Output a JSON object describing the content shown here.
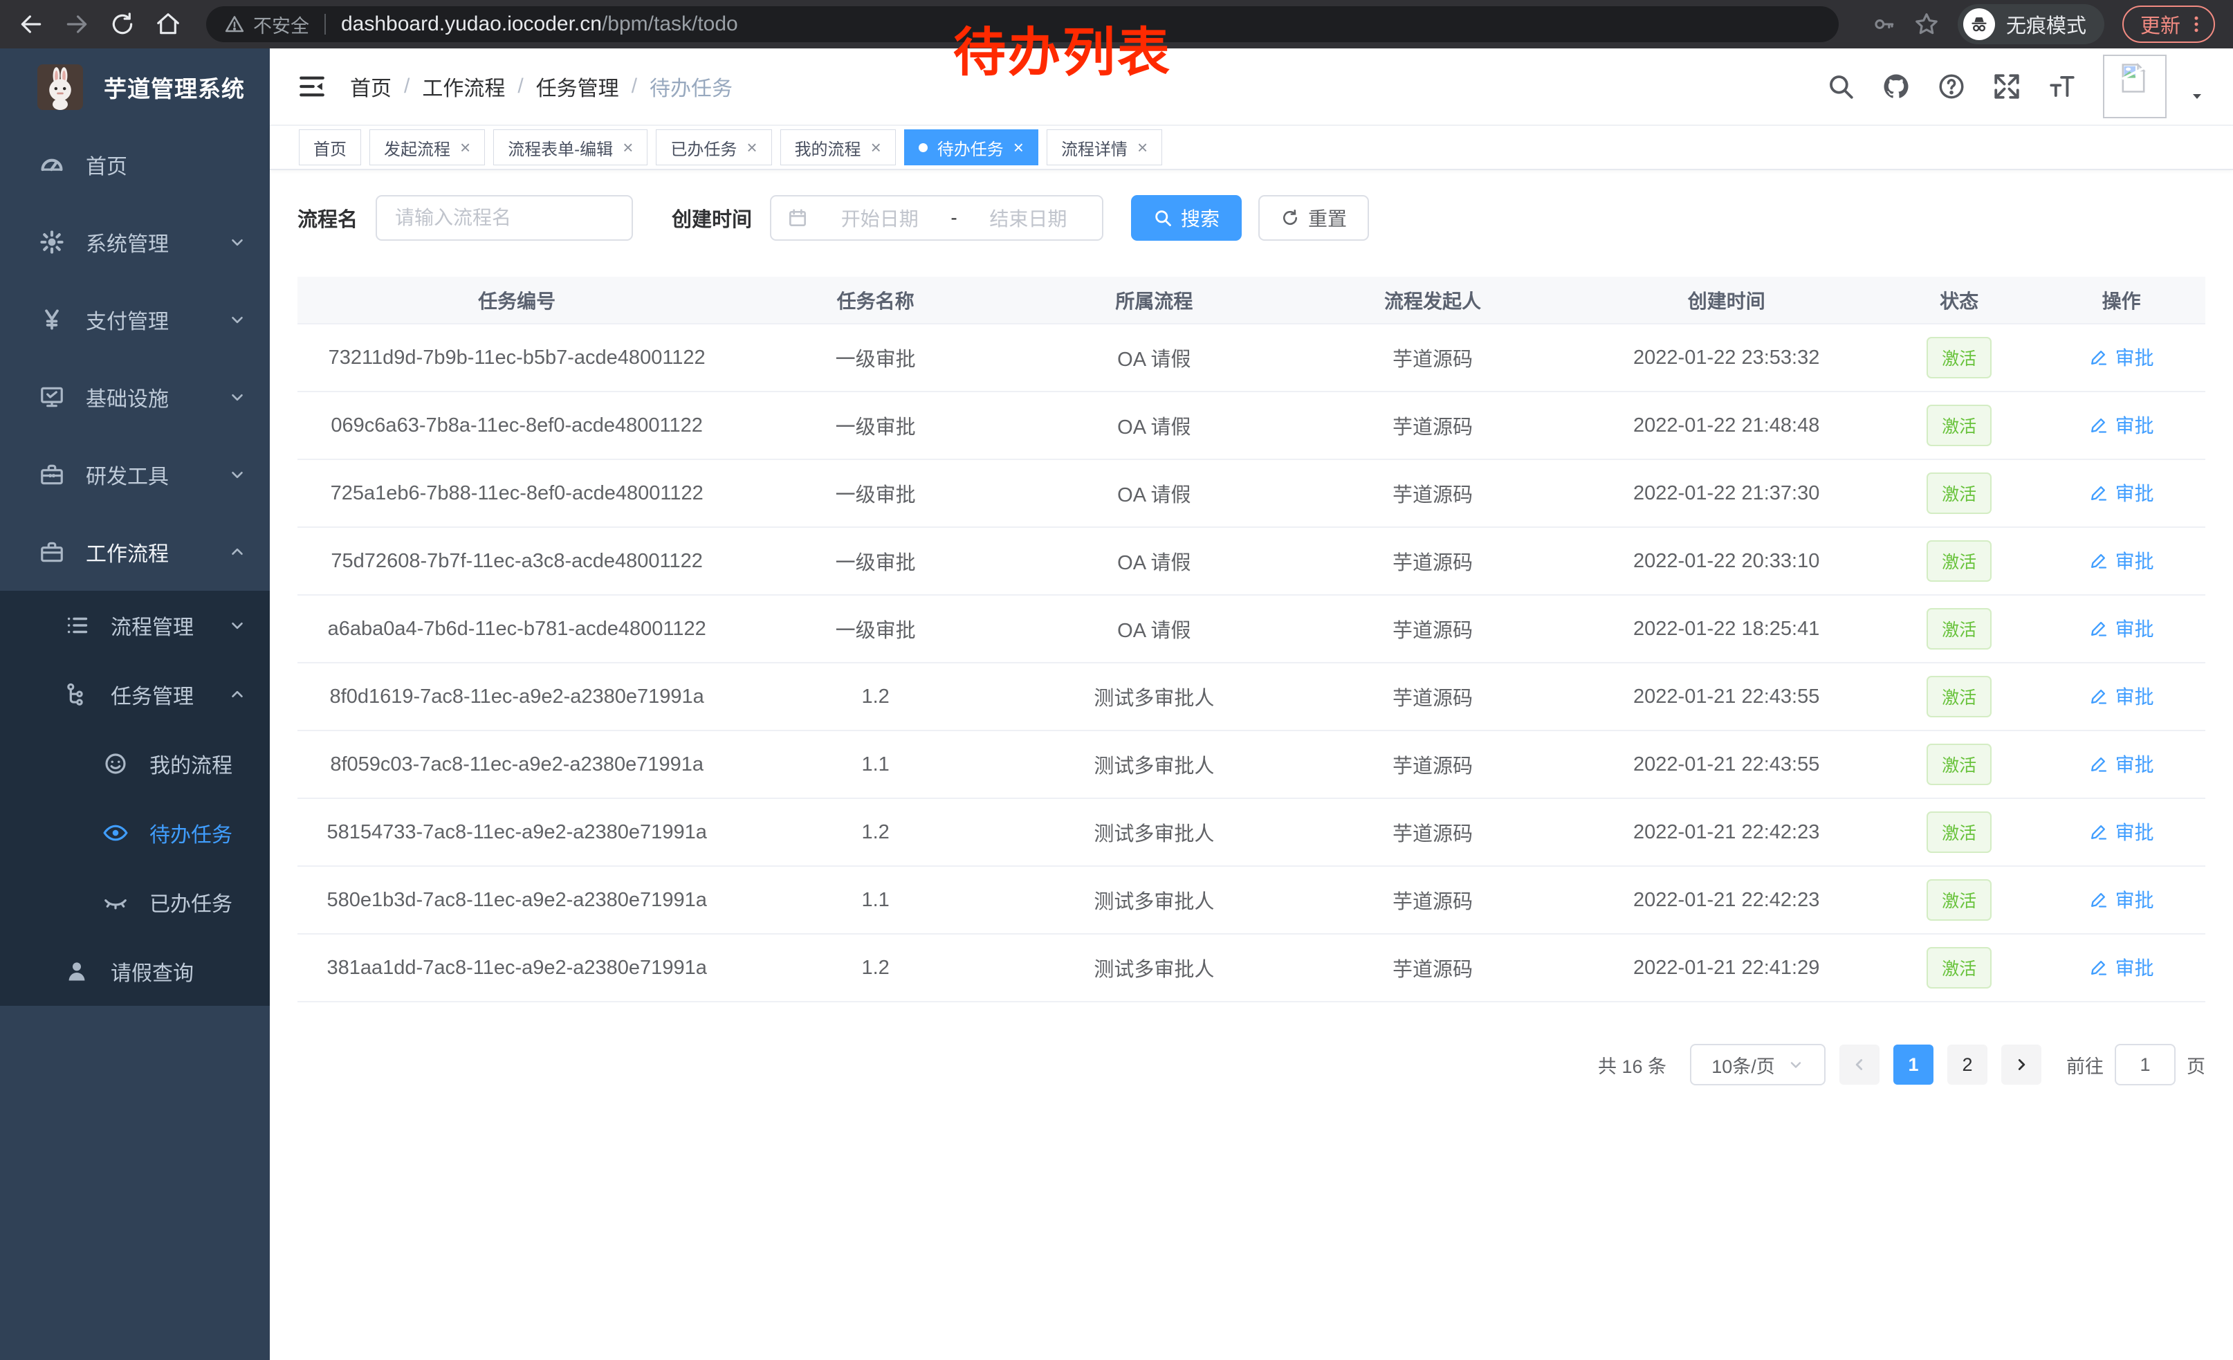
{
  "browser": {
    "security_label": "不安全",
    "url_host": "dashboard.yudao.iocoder.cn",
    "url_path": "/bpm/task/todo",
    "incognito_label": "无痕模式",
    "update_label": "更新"
  },
  "annotation": {
    "text": "待办列表",
    "color": "#ff2a00"
  },
  "sidebar": {
    "logo_title": "芋道管理系统",
    "menu": [
      {
        "key": "home",
        "label": "首页",
        "icon": "dashboard-icon",
        "level": 1
      },
      {
        "key": "system-management",
        "label": "系统管理",
        "icon": "gear-icon",
        "level": 1,
        "chevron": "down"
      },
      {
        "key": "payment-management",
        "label": "支付管理",
        "icon": "yen-icon",
        "level": 1,
        "chevron": "down"
      },
      {
        "key": "infrastructure",
        "label": "基础设施",
        "icon": "monitor-icon",
        "level": 1,
        "chevron": "down"
      },
      {
        "key": "dev-tools",
        "label": "研发工具",
        "icon": "toolbox-icon",
        "level": 1,
        "chevron": "down"
      },
      {
        "key": "workflow",
        "label": "工作流程",
        "icon": "briefcase-icon",
        "level": 1,
        "chevron": "up",
        "opened": true
      },
      {
        "key": "process-management",
        "label": "流程管理",
        "icon": "list-icon",
        "level": 2,
        "chevron": "down",
        "sub": true
      },
      {
        "key": "task-management",
        "label": "任务管理",
        "icon": "flow-icon",
        "level": 2,
        "chevron": "up",
        "sub": true
      },
      {
        "key": "my-process",
        "label": "我的流程",
        "icon": "face-icon",
        "level": 3,
        "sub": true
      },
      {
        "key": "todo-tasks",
        "label": "待办任务",
        "icon": "eye-icon",
        "level": 3,
        "sub": true,
        "active": true
      },
      {
        "key": "done-tasks",
        "label": "已办任务",
        "icon": "eye-closed-icon",
        "level": 3,
        "sub": true
      },
      {
        "key": "leave-query",
        "label": "请假查询",
        "icon": "person-icon",
        "level": 2,
        "sub": true
      }
    ]
  },
  "header": {
    "breadcrumb": [
      "首页",
      "工作流程",
      "任务管理",
      "待办任务"
    ]
  },
  "tags": [
    {
      "key": "home",
      "label": "首页"
    },
    {
      "key": "start-process",
      "label": "发起流程",
      "closable": true
    },
    {
      "key": "form-edit",
      "label": "流程表单-编辑",
      "closable": true
    },
    {
      "key": "done-tasks",
      "label": "已办任务",
      "closable": true
    },
    {
      "key": "my-process",
      "label": "我的流程",
      "closable": true
    },
    {
      "key": "todo-tasks",
      "label": "待办任务",
      "closable": true,
      "active": true
    },
    {
      "key": "process-detail",
      "label": "流程详情",
      "closable": true
    }
  ],
  "filters": {
    "name_label": "流程名",
    "name_placeholder": "请输入流程名",
    "date_label": "创建时间",
    "date_start_placeholder": "开始日期",
    "date_separator": "-",
    "date_end_placeholder": "结束日期",
    "search_label": "搜索",
    "reset_label": "重置"
  },
  "table": {
    "columns": [
      "任务编号",
      "任务名称",
      "所属流程",
      "流程发起人",
      "创建时间",
      "状态",
      "操作"
    ],
    "status_label": "激活",
    "action_label": "审批",
    "rows": [
      {
        "id": "73211d9d-7b9b-11ec-b5b7-acde48001122",
        "name": "一级审批",
        "process": "OA 请假",
        "starter": "芋道源码",
        "time": "2022-01-22 23:53:32"
      },
      {
        "id": "069c6a63-7b8a-11ec-8ef0-acde48001122",
        "name": "一级审批",
        "process": "OA 请假",
        "starter": "芋道源码",
        "time": "2022-01-22 21:48:48"
      },
      {
        "id": "725a1eb6-7b88-11ec-8ef0-acde48001122",
        "name": "一级审批",
        "process": "OA 请假",
        "starter": "芋道源码",
        "time": "2022-01-22 21:37:30"
      },
      {
        "id": "75d72608-7b7f-11ec-a3c8-acde48001122",
        "name": "一级审批",
        "process": "OA 请假",
        "starter": "芋道源码",
        "time": "2022-01-22 20:33:10"
      },
      {
        "id": "a6aba0a4-7b6d-11ec-b781-acde48001122",
        "name": "一级审批",
        "process": "OA 请假",
        "starter": "芋道源码",
        "time": "2022-01-22 18:25:41"
      },
      {
        "id": "8f0d1619-7ac8-11ec-a9e2-a2380e71991a",
        "name": "1.2",
        "process": "测试多审批人",
        "starter": "芋道源码",
        "time": "2022-01-21 22:43:55"
      },
      {
        "id": "8f059c03-7ac8-11ec-a9e2-a2380e71991a",
        "name": "1.1",
        "process": "测试多审批人",
        "starter": "芋道源码",
        "time": "2022-01-21 22:43:55"
      },
      {
        "id": "58154733-7ac8-11ec-a9e2-a2380e71991a",
        "name": "1.2",
        "process": "测试多审批人",
        "starter": "芋道源码",
        "time": "2022-01-21 22:42:23"
      },
      {
        "id": "580e1b3d-7ac8-11ec-a9e2-a2380e71991a",
        "name": "1.1",
        "process": "测试多审批人",
        "starter": "芋道源码",
        "time": "2022-01-21 22:42:23"
      },
      {
        "id": "381aa1dd-7ac8-11ec-a9e2-a2380e71991a",
        "name": "1.2",
        "process": "测试多审批人",
        "starter": "芋道源码",
        "time": "2022-01-21 22:41:29"
      }
    ]
  },
  "pagination": {
    "total_label": "共 16 条",
    "page_size_label": "10条/页",
    "pages": [
      "1",
      "2"
    ],
    "active_page": "1",
    "goto_label": "前往",
    "goto_value": "1",
    "unit_label": "页"
  },
  "colors": {
    "accent": "#409eff",
    "success": "#67c23a",
    "sidebar_bg": "#304156",
    "submenu_bg": "#1f2d3d",
    "annotation_red": "#ff2a00",
    "update_salmon": "#f28b82"
  }
}
